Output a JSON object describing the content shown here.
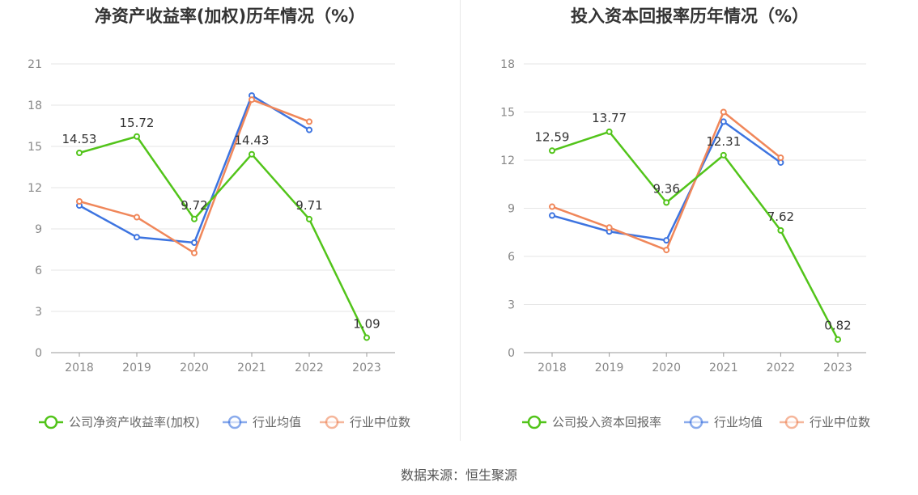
{
  "source": "数据来源：恒生聚源",
  "chart_data": [
    {
      "type": "line",
      "title": "净资产收益率(加权)历年情况（%）",
      "categories": [
        "2018",
        "2019",
        "2020",
        "2021",
        "2022",
        "2023"
      ],
      "ylim": [
        0,
        21
      ],
      "yticks": [
        0,
        3,
        6,
        9,
        12,
        15,
        18,
        21
      ],
      "grid": true,
      "legend_position": "bottom",
      "series": [
        {
          "name": "公司净资产收益率(加权)",
          "color": "#52c41a",
          "values": [
            14.53,
            15.72,
            9.72,
            14.43,
            9.71,
            1.09
          ],
          "labels": [
            "14.53",
            "15.72",
            "9.72",
            "14.43",
            "9.71",
            "1.09"
          ]
        },
        {
          "name": "行业均值",
          "color": "#3d74e0",
          "values": [
            10.7,
            8.4,
            8.0,
            18.7,
            16.2,
            null
          ]
        },
        {
          "name": "行业中位数",
          "color": "#f0875a",
          "values": [
            11.0,
            9.85,
            7.25,
            18.4,
            16.8,
            null
          ]
        }
      ]
    },
    {
      "type": "line",
      "title": "投入资本回报率历年情况（%）",
      "categories": [
        "2018",
        "2019",
        "2020",
        "2021",
        "2022",
        "2023"
      ],
      "ylim": [
        0,
        18
      ],
      "yticks": [
        0,
        3,
        6,
        9,
        12,
        15,
        18
      ],
      "grid": true,
      "legend_position": "bottom",
      "series": [
        {
          "name": "公司投入资本回报率",
          "color": "#52c41a",
          "values": [
            12.59,
            13.77,
            9.36,
            12.31,
            7.62,
            0.82
          ],
          "labels": [
            "12.59",
            "13.77",
            "9.36",
            "12.31",
            "7.62",
            "0.82"
          ]
        },
        {
          "name": "行业均值",
          "color": "#3d74e0",
          "values": [
            8.55,
            7.55,
            7.0,
            14.4,
            11.85,
            null
          ]
        },
        {
          "name": "行业中位数",
          "color": "#f0875a",
          "values": [
            9.1,
            7.8,
            6.4,
            15.0,
            12.15,
            null
          ]
        }
      ]
    }
  ]
}
